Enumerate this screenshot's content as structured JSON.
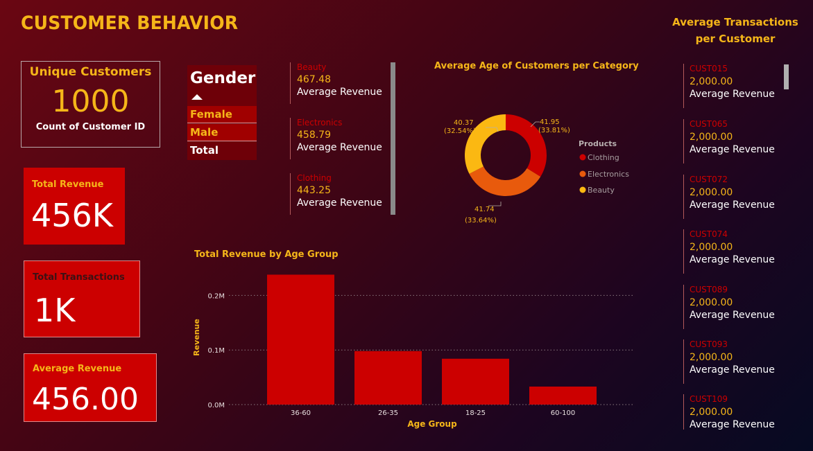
{
  "title": "CUSTOMER BEHAVIOR",
  "kpis": {
    "unique": {
      "title": "Unique Customers",
      "value": "1000",
      "subtitle": "Count of Customer ID"
    },
    "total_revenue": {
      "label": "Total Revenue",
      "value": "456K"
    },
    "total_transactions": {
      "label": "Total Transactions",
      "value": "1K"
    },
    "average_revenue": {
      "label": "Average Revenue",
      "value": "456.00"
    }
  },
  "gender_slicer": {
    "title": "Gender",
    "options": [
      {
        "label": "Female"
      },
      {
        "label": "Male"
      },
      {
        "label": "Total"
      }
    ]
  },
  "category_revenue": [
    {
      "category": "Beauty",
      "value": "467.48",
      "label": "Average Revenue"
    },
    {
      "category": "Electronics",
      "value": "458.79",
      "label": "Average Revenue"
    },
    {
      "category": "Clothing",
      "value": "443.25",
      "label": "Average Revenue"
    }
  ],
  "colors": {
    "accent": "#f5b619",
    "red": "#cc0000",
    "clothing": "#cc0000",
    "electronics": "#e85a0c",
    "beauty": "#fbb812"
  },
  "charts": {
    "donut": {
      "title": "Average Age of Customers per Category",
      "legend_title": "Products"
    },
    "bars": {
      "title": "Total Revenue by Age Group"
    }
  },
  "chart_data": [
    {
      "type": "pie",
      "title": "Average Age of Customers per Category",
      "legend_title": "Products",
      "legend_position": "right",
      "categories": [
        "Clothing",
        "Electronics",
        "Beauty"
      ],
      "values": [
        41.95,
        41.74,
        40.37
      ],
      "labels": [
        "41.95 (33.81%)",
        "41.74 (33.64%)",
        "40.37 (32.54%)"
      ],
      "label_values": [
        "41.95",
        "41.74",
        "40.37"
      ],
      "label_pcts": [
        "(33.81%)",
        "(33.64%)",
        "(32.54%)"
      ]
    },
    {
      "type": "bar",
      "title": "Total Revenue by Age Group",
      "xlabel": "Age Group",
      "ylabel": "Revenue",
      "categories": [
        "36-60",
        "26-35",
        "18-25",
        "60-100"
      ],
      "values": [
        238000,
        98000,
        84000,
        33000
      ],
      "ylim": [
        0,
        250000
      ],
      "yticks": [
        0,
        100000,
        200000
      ],
      "ytick_labels": [
        "0.0M",
        "0.1M",
        "0.2M"
      ],
      "grid": true
    }
  ],
  "transactions_per_customer": {
    "title_line1": "Average Transactions",
    "title_line2": "per Customer",
    "items": [
      {
        "id": "CUST015",
        "value": "2,000.00",
        "label": "Average Revenue"
      },
      {
        "id": "CUST065",
        "value": "2,000.00",
        "label": "Average Revenue"
      },
      {
        "id": "CUST072",
        "value": "2,000.00",
        "label": "Average Revenue"
      },
      {
        "id": "CUST074",
        "value": "2,000.00",
        "label": "Average Revenue"
      },
      {
        "id": "CUST089",
        "value": "2,000.00",
        "label": "Average Revenue"
      },
      {
        "id": "CUST093",
        "value": "2,000.00",
        "label": "Average Revenue"
      },
      {
        "id": "CUST109",
        "value": "2,000.00",
        "label": "Average Revenue"
      }
    ]
  }
}
